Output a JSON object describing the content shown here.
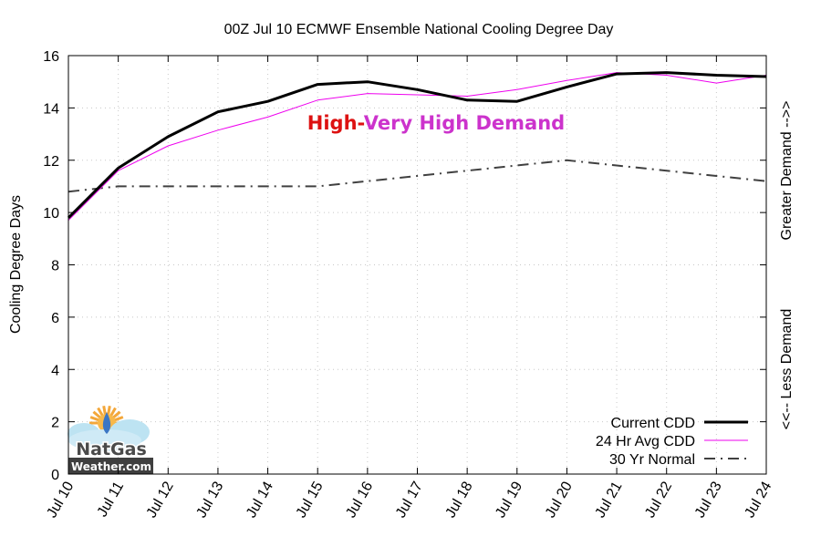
{
  "chart_data": {
    "type": "line",
    "title": "00Z Jul 10 ECMWF Ensemble National Cooling Degree Day",
    "xlabel": "",
    "ylabel": "Cooling Degree Days",
    "y2label_top": "Greater Demand -->>",
    "y2label_bottom": "<<-- Less Demand",
    "categories": [
      "Jul 10",
      "Jul 11",
      "Jul 12",
      "Jul 13",
      "Jul 14",
      "Jul 15",
      "Jul 16",
      "Jul 17",
      "Jul 18",
      "Jul 19",
      "Jul 20",
      "Jul 21",
      "Jul 22",
      "Jul 23",
      "Jul 24"
    ],
    "ylim": [
      0,
      16
    ],
    "yticks": [
      0,
      2,
      4,
      6,
      8,
      10,
      12,
      14,
      16
    ],
    "grid": true,
    "legend_position": "bottom-right",
    "series": [
      {
        "name": "Current CDD",
        "color": "#000000",
        "style": "solid-thick",
        "values": [
          9.8,
          11.7,
          12.9,
          13.85,
          14.25,
          14.9,
          15.0,
          14.7,
          14.3,
          14.25,
          14.8,
          15.3,
          15.35,
          15.25,
          15.2
        ]
      },
      {
        "name": "24 Hr Avg CDD",
        "color": "#ee00ee",
        "style": "solid-thin",
        "values": [
          9.7,
          11.6,
          12.55,
          13.15,
          13.65,
          14.3,
          14.55,
          14.5,
          14.45,
          14.7,
          15.05,
          15.35,
          15.25,
          14.95,
          15.25
        ]
      },
      {
        "name": "30 Yr Normal",
        "color": "#404040",
        "style": "dash-dot",
        "values": [
          10.8,
          11.0,
          11.0,
          11.0,
          11.0,
          11.0,
          11.2,
          11.4,
          11.6,
          11.8,
          12.0,
          11.8,
          11.6,
          11.4,
          11.2
        ]
      }
    ],
    "annotation": {
      "part1": "High-",
      "part2": "Very High Demand",
      "color1": "#dd1111",
      "color2": "#cc33cc"
    }
  },
  "logo": {
    "line1": "NatGas",
    "line2": "Weather.com"
  }
}
